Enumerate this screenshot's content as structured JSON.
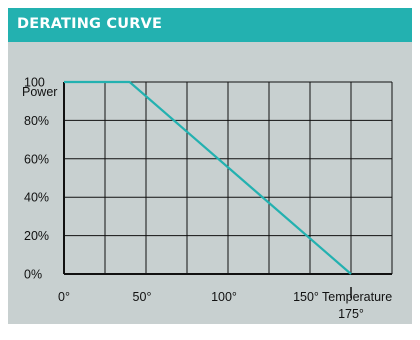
{
  "header": {
    "title": "DERATING CURVE"
  },
  "colors": {
    "header_bg": "#23b1b0",
    "panel_bg": "#c8d0d0",
    "curve": "#23b1b0",
    "grid": "#111111"
  },
  "chart_data": {
    "type": "line",
    "title": "DERATING CURVE",
    "ylabel": "Power",
    "xlabel": "Temperature",
    "x_tick_labels": [
      "0°",
      "50°",
      "100°",
      "150°",
      "175°"
    ],
    "y_tick_labels": [
      "100",
      "80%",
      "60%",
      "40%",
      "20%",
      "0%"
    ],
    "series": [
      {
        "x": [
          0,
          40,
          175
        ],
        "y": [
          100,
          100,
          0
        ]
      }
    ],
    "xlim": [
      0,
      200
    ],
    "ylim": [
      0,
      100
    ],
    "grid": true
  }
}
